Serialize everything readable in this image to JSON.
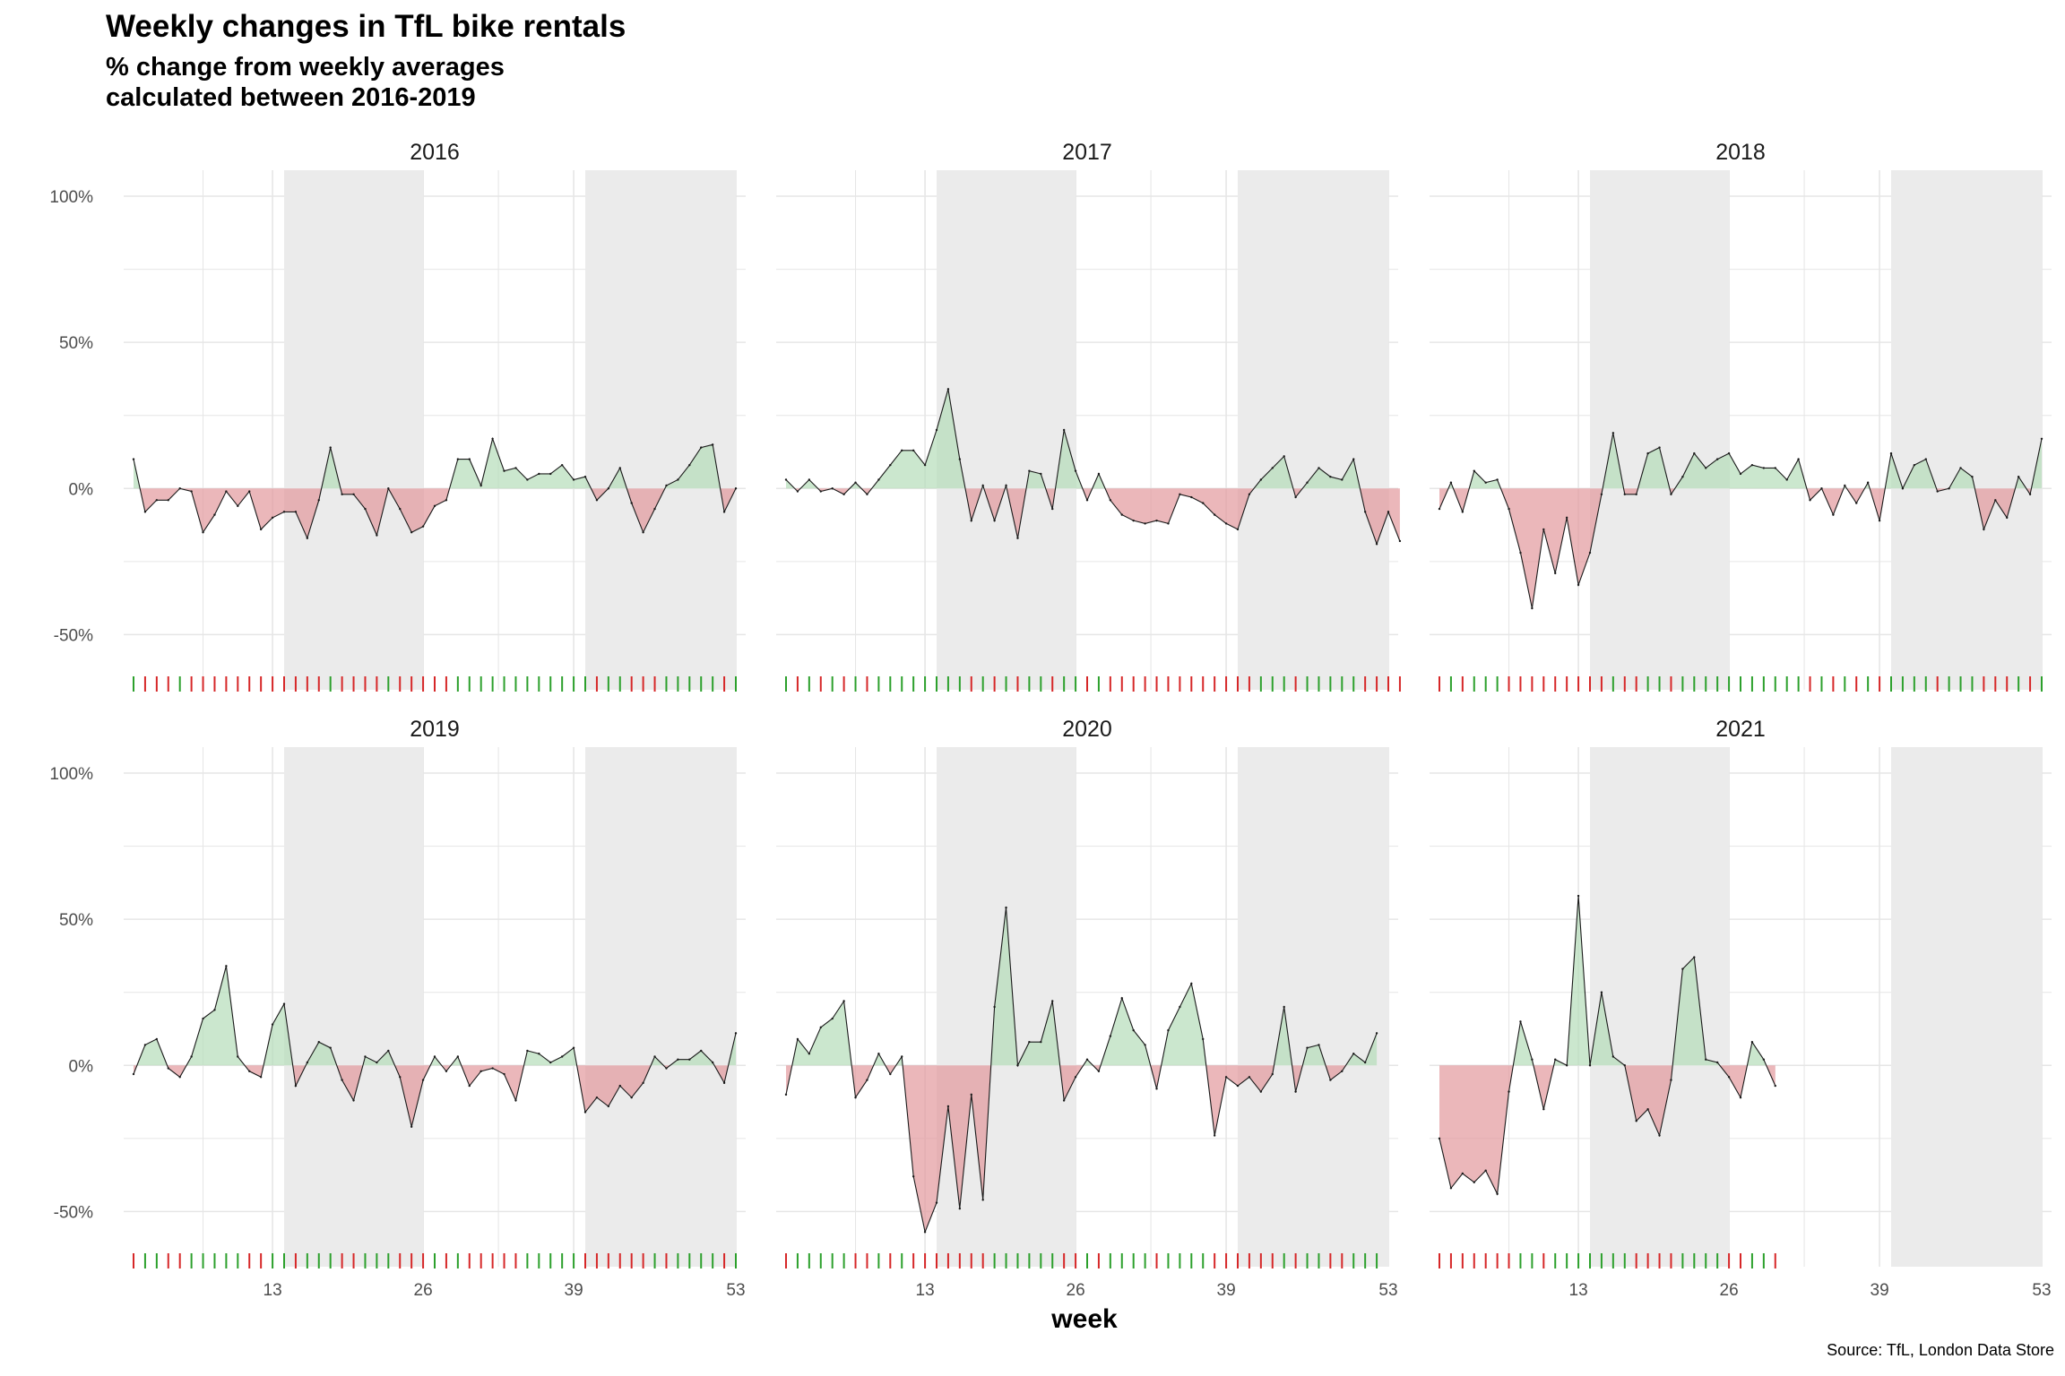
{
  "title": "Weekly changes in TfL bike rentals",
  "subtitle_lines": [
    "% change from weekly averages",
    "calculated between 2016-2019"
  ],
  "caption": "Source: TfL, London Data Store",
  "chart_data": {
    "type": "area",
    "xlabel": "week",
    "ylabel": "",
    "x_ticks": [
      13,
      26,
      39,
      53
    ],
    "y_ticks": [
      100,
      50,
      0,
      -50
    ],
    "y_tick_labels": [
      "100%",
      "50%",
      "0%",
      "-50%"
    ],
    "xlim": [
      1,
      53
    ],
    "ylim": [
      -60,
      100
    ],
    "shaded_week_ranges": [
      [
        14,
        26
      ],
      [
        40,
        53
      ]
    ],
    "grid": true,
    "colors": {
      "positive": "#b5ddb9",
      "negative": "#e3999c",
      "line": "#1a1a1a",
      "shade": "#ebebeb",
      "tick_positive": "#2ca02c",
      "tick_negative": "#d62728",
      "grid": "#e6e6e6"
    },
    "panels": [
      {
        "label": "2016",
        "values": [
          10,
          -8,
          -4,
          -4,
          0,
          -1,
          -15,
          -9,
          -1,
          -6,
          -1,
          -14,
          -10,
          -8,
          -8,
          -17,
          -4,
          14,
          -2,
          -2,
          -7,
          -16,
          0,
          -7,
          -15,
          -13,
          -6,
          -4,
          10,
          10,
          1,
          17,
          6,
          7,
          3,
          5,
          5,
          8,
          3,
          4,
          -4,
          0,
          7,
          -5,
          -15,
          -7,
          1,
          3,
          8,
          14,
          15,
          -8,
          0
        ]
      },
      {
        "label": "2017",
        "values": [
          3,
          -1,
          3,
          -1,
          0,
          -2,
          2,
          -2,
          3,
          8,
          13,
          13,
          8,
          20,
          34,
          10,
          -11,
          1,
          -11,
          1,
          -17,
          6,
          5,
          -7,
          20,
          6,
          -4,
          5,
          -4,
          -9,
          -11,
          -12,
          -11,
          -12,
          -2,
          -3,
          -5,
          -9,
          -12,
          -14,
          -2,
          3,
          7,
          11,
          -3,
          2,
          7,
          4,
          3,
          10,
          -8,
          -19,
          -8,
          -18
        ]
      },
      {
        "label": "2018",
        "values": [
          -7,
          2,
          -8,
          6,
          2,
          3,
          -7,
          -22,
          -41,
          -14,
          -29,
          -10,
          -33,
          -22,
          -2,
          19,
          -2,
          -2,
          12,
          14,
          -2,
          4,
          12,
          7,
          10,
          12,
          5,
          8,
          7,
          7,
          3,
          10,
          -4,
          0,
          -9,
          1,
          -5,
          2,
          -11,
          12,
          0,
          8,
          10,
          -1,
          0,
          7,
          4,
          -14,
          -4,
          -10,
          4,
          -2,
          17
        ]
      },
      {
        "label": "2019",
        "values": [
          -3,
          7,
          9,
          -1,
          -4,
          3,
          16,
          19,
          34,
          3,
          -2,
          -4,
          14,
          21,
          -7,
          1,
          8,
          6,
          -5,
          -12,
          3,
          1,
          5,
          -4,
          -21,
          -5,
          3,
          -2,
          3,
          -7,
          -2,
          -1,
          -3,
          -12,
          5,
          4,
          1,
          3,
          6,
          -16,
          -11,
          -14,
          -7,
          -11,
          -6,
          3,
          -1,
          2,
          2,
          5,
          1,
          -6,
          11
        ]
      },
      {
        "label": "2020",
        "values": [
          -10,
          9,
          4,
          13,
          16,
          22,
          -11,
          -5,
          4,
          -3,
          3,
          -38,
          -57,
          -47,
          -14,
          -49,
          -10,
          -46,
          20,
          54,
          0,
          8,
          8,
          22,
          -12,
          -4,
          2,
          -2,
          10,
          23,
          12,
          7,
          -8,
          12,
          20,
          28,
          9,
          -24,
          -4,
          -7,
          -4,
          -9,
          -3,
          20,
          -9,
          6,
          7,
          -5,
          -2,
          4,
          1,
          11
        ]
      },
      {
        "label": "2021",
        "values": [
          -25,
          -42,
          -37,
          -40,
          -36,
          -44,
          -9,
          15,
          2,
          -15,
          2,
          0,
          58,
          0,
          25,
          3,
          0,
          -19,
          -15,
          -24,
          -5,
          33,
          37,
          2,
          1,
          -4,
          -11,
          8,
          2,
          -7
        ]
      }
    ]
  }
}
